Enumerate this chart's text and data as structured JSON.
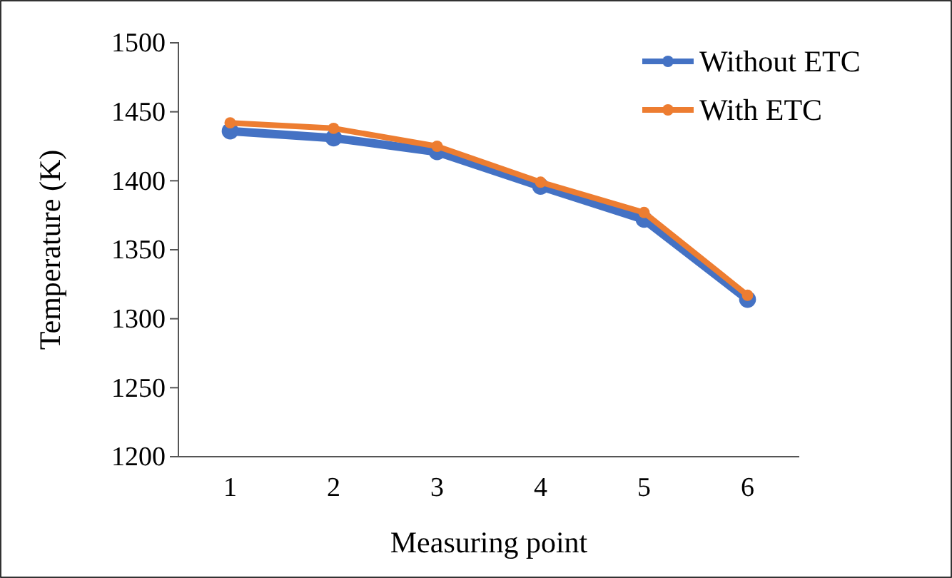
{
  "chart_data": {
    "type": "line",
    "xlabel": "Measuring point",
    "ylabel": "Temperature (K)",
    "categories": [
      "1",
      "2",
      "3",
      "4",
      "5",
      "6"
    ],
    "series": [
      {
        "name": "Without ETC",
        "color": "#4472c4",
        "values": [
          1436,
          1431,
          1421,
          1396,
          1372,
          1314
        ]
      },
      {
        "name": "With ETC",
        "color": "#ed7d31",
        "values": [
          1442,
          1438,
          1425,
          1399,
          1377,
          1317
        ]
      }
    ],
    "ylim": [
      1200,
      1500
    ],
    "yticks": [
      1200,
      1250,
      1300,
      1350,
      1400,
      1450,
      1500
    ],
    "grid": false,
    "legend": "top right",
    "marker": "circle",
    "line_style": "solid"
  }
}
